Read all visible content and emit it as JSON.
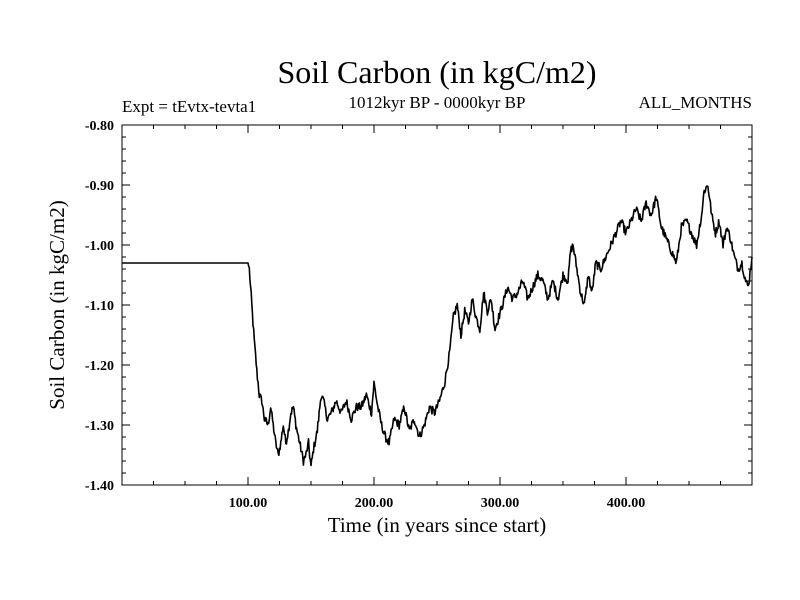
{
  "chart_data": {
    "type": "line",
    "title": "Soil Carbon (in kgC/m2)",
    "subtitle_left": "Expt = tEvtx-tevta1",
    "subtitle_center": "1012kyr BP - 0000kyr BP",
    "subtitle_right": "ALL_MONTHS",
    "xlabel": "Time (in years since start)",
    "ylabel": "Soil Carbon (in kgC/m2)",
    "xlim": [
      0,
      500
    ],
    "ylim": [
      -1.4,
      -0.8
    ],
    "x_tick_labels": [
      "100.00",
      "200.00",
      "300.00",
      "400.00"
    ],
    "x_tick_values": [
      100,
      200,
      300,
      400
    ],
    "y_tick_labels": [
      "-0.80",
      "-0.90",
      "-1.00",
      "-1.10",
      "-1.20",
      "-1.30",
      "-1.40"
    ],
    "y_tick_values": [
      -0.8,
      -0.9,
      -1.0,
      -1.1,
      -1.2,
      -1.3,
      -1.4
    ],
    "grid": false,
    "line_color": "#000000",
    "series": [
      {
        "name": "Soil Carbon",
        "x": [
          0,
          100,
          101,
          103,
          105,
          107,
          109,
          111,
          113,
          116,
          118,
          120,
          122,
          124,
          126,
          128,
          130,
          132,
          134,
          136,
          138,
          140,
          142,
          144,
          146,
          148,
          150,
          152,
          155,
          158,
          160,
          163,
          166,
          170,
          174,
          178,
          182,
          186,
          190,
          194,
          198,
          200,
          203,
          206,
          209,
          212,
          216,
          220,
          224,
          228,
          232,
          236,
          240,
          244,
          248,
          252,
          256,
          260,
          263,
          266,
          269,
          272,
          275,
          278,
          281,
          284,
          287,
          290,
          293,
          296,
          299,
          302,
          306,
          310,
          314,
          318,
          322,
          326,
          330,
          334,
          338,
          342,
          346,
          350,
          354,
          356,
          358,
          361,
          364,
          367,
          370,
          373,
          376,
          380,
          384,
          388,
          392,
          396,
          400,
          404,
          408,
          412,
          416,
          420,
          424,
          428,
          432,
          436,
          440,
          444,
          448,
          452,
          456,
          460,
          462,
          465,
          468,
          471,
          474,
          477,
          480,
          483,
          486,
          489,
          492,
          495,
          497,
          500
        ],
        "y": [
          -1.03,
          -1.03,
          -1.04,
          -1.1,
          -1.16,
          -1.21,
          -1.25,
          -1.26,
          -1.29,
          -1.3,
          -1.27,
          -1.3,
          -1.33,
          -1.35,
          -1.33,
          -1.3,
          -1.33,
          -1.31,
          -1.28,
          -1.27,
          -1.3,
          -1.32,
          -1.34,
          -1.36,
          -1.35,
          -1.33,
          -1.37,
          -1.34,
          -1.31,
          -1.25,
          -1.26,
          -1.29,
          -1.28,
          -1.26,
          -1.28,
          -1.26,
          -1.29,
          -1.27,
          -1.27,
          -1.25,
          -1.28,
          -1.23,
          -1.27,
          -1.3,
          -1.32,
          -1.33,
          -1.29,
          -1.3,
          -1.27,
          -1.31,
          -1.29,
          -1.32,
          -1.3,
          -1.27,
          -1.28,
          -1.26,
          -1.23,
          -1.18,
          -1.12,
          -1.1,
          -1.15,
          -1.11,
          -1.13,
          -1.09,
          -1.12,
          -1.14,
          -1.08,
          -1.11,
          -1.09,
          -1.14,
          -1.12,
          -1.1,
          -1.07,
          -1.09,
          -1.08,
          -1.06,
          -1.09,
          -1.07,
          -1.05,
          -1.06,
          -1.09,
          -1.06,
          -1.09,
          -1.05,
          -1.06,
          -1.01,
          -1.0,
          -1.04,
          -1.08,
          -1.1,
          -1.05,
          -1.08,
          -1.03,
          -1.04,
          -1.02,
          -1.0,
          -0.98,
          -0.96,
          -0.98,
          -0.96,
          -0.94,
          -0.96,
          -0.93,
          -0.95,
          -0.92,
          -0.97,
          -0.99,
          -1.01,
          -1.03,
          -0.97,
          -0.96,
          -0.98,
          -1.0,
          -0.95,
          -0.91,
          -0.9,
          -0.95,
          -0.98,
          -0.96,
          -1.0,
          -0.97,
          -0.99,
          -1.02,
          -1.04,
          -1.03,
          -1.06,
          -1.07,
          -1.02
        ]
      }
    ]
  }
}
